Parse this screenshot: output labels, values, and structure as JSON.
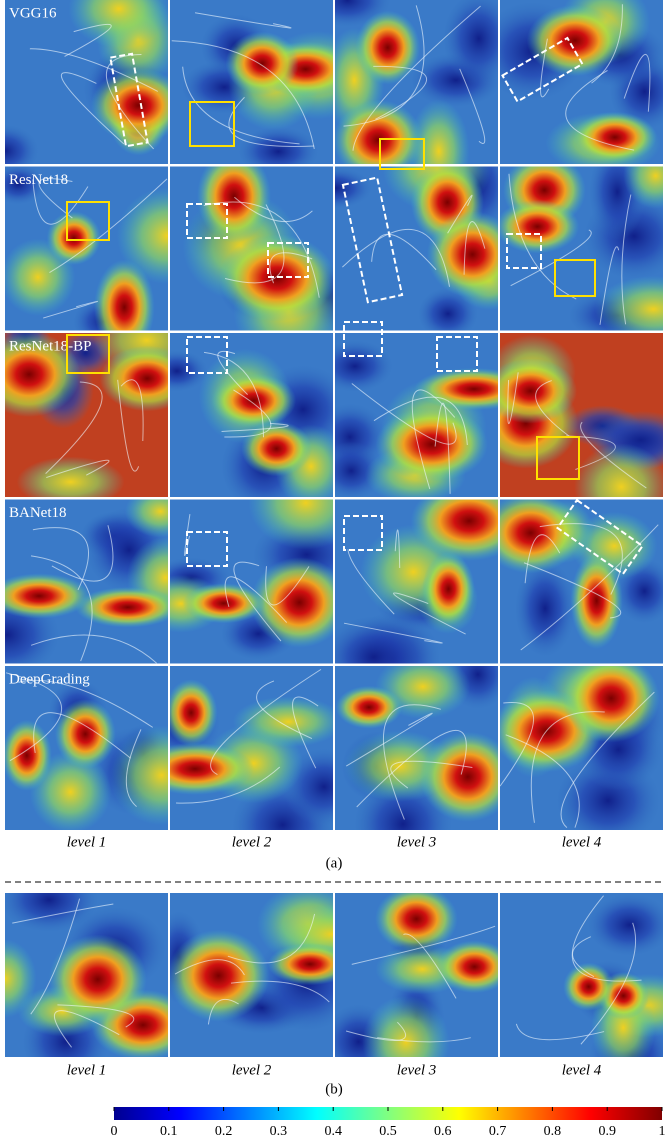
{
  "rows": [
    "VGG16",
    "ResNet18",
    "ResNet18-BP",
    "BANet18",
    "DeepGrading"
  ],
  "panel_a": {
    "columns": [
      "level 1",
      "level 2",
      "level 3",
      "level 4"
    ],
    "label": "(a)"
  },
  "panel_b": {
    "columns": [
      "level 1",
      "level 2",
      "level 3",
      "level 4"
    ],
    "label": "(b)"
  },
  "colorbar": {
    "range": [
      0,
      1
    ],
    "ticks": [
      0,
      0.1,
      0.2,
      0.3,
      0.4,
      0.5,
      0.6,
      0.7,
      0.8,
      0.9,
      1
    ]
  }
}
